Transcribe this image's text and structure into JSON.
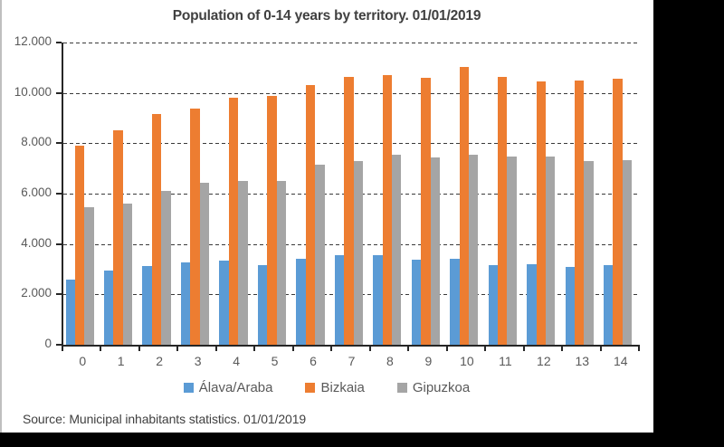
{
  "title": "Population of 0-14 years by territory. 01/01/2019",
  "source_note": "Source: Municipal inhabitants statistics. 01/01/2019",
  "palette": {
    "axis": "#262626",
    "grid": "#3a3a3a",
    "label_text": "#595959",
    "title_text": "#404040",
    "background": "#ffffff",
    "surround": "#000000"
  },
  "chart_data": {
    "type": "bar",
    "title": "Population of 0-14 years by territory. 01/01/2019",
    "categories": [
      "0",
      "1",
      "2",
      "3",
      "4",
      "5",
      "6",
      "7",
      "8",
      "9",
      "10",
      "11",
      "12",
      "13",
      "14"
    ],
    "series": [
      {
        "name": "Álava/Araba",
        "color": "#5B9BD5",
        "values": [
          2600,
          2950,
          3130,
          3270,
          3330,
          3180,
          3420,
          3560,
          3560,
          3390,
          3430,
          3170,
          3190,
          3080,
          3180
        ]
      },
      {
        "name": "Bizkaia",
        "color": "#ED7D31",
        "values": [
          7900,
          8500,
          9150,
          9380,
          9820,
          9870,
          10300,
          10640,
          10700,
          10600,
          11040,
          10640,
          10440,
          10500,
          10580
        ]
      },
      {
        "name": "Gipuzkoa",
        "color": "#A5A5A5",
        "values": [
          5470,
          5620,
          6100,
          6440,
          6500,
          6520,
          7150,
          7290,
          7540,
          7420,
          7530,
          7480,
          7470,
          7280,
          7330
        ]
      }
    ],
    "xlabel": "",
    "ylabel": "",
    "ylim": [
      0,
      12000
    ],
    "y_ticks": [
      "0",
      "2.000",
      "4.000",
      "6.000",
      "8.000",
      "10.000",
      "12.000"
    ],
    "grid": "horizontal-dashed",
    "legend_position": "bottom"
  }
}
